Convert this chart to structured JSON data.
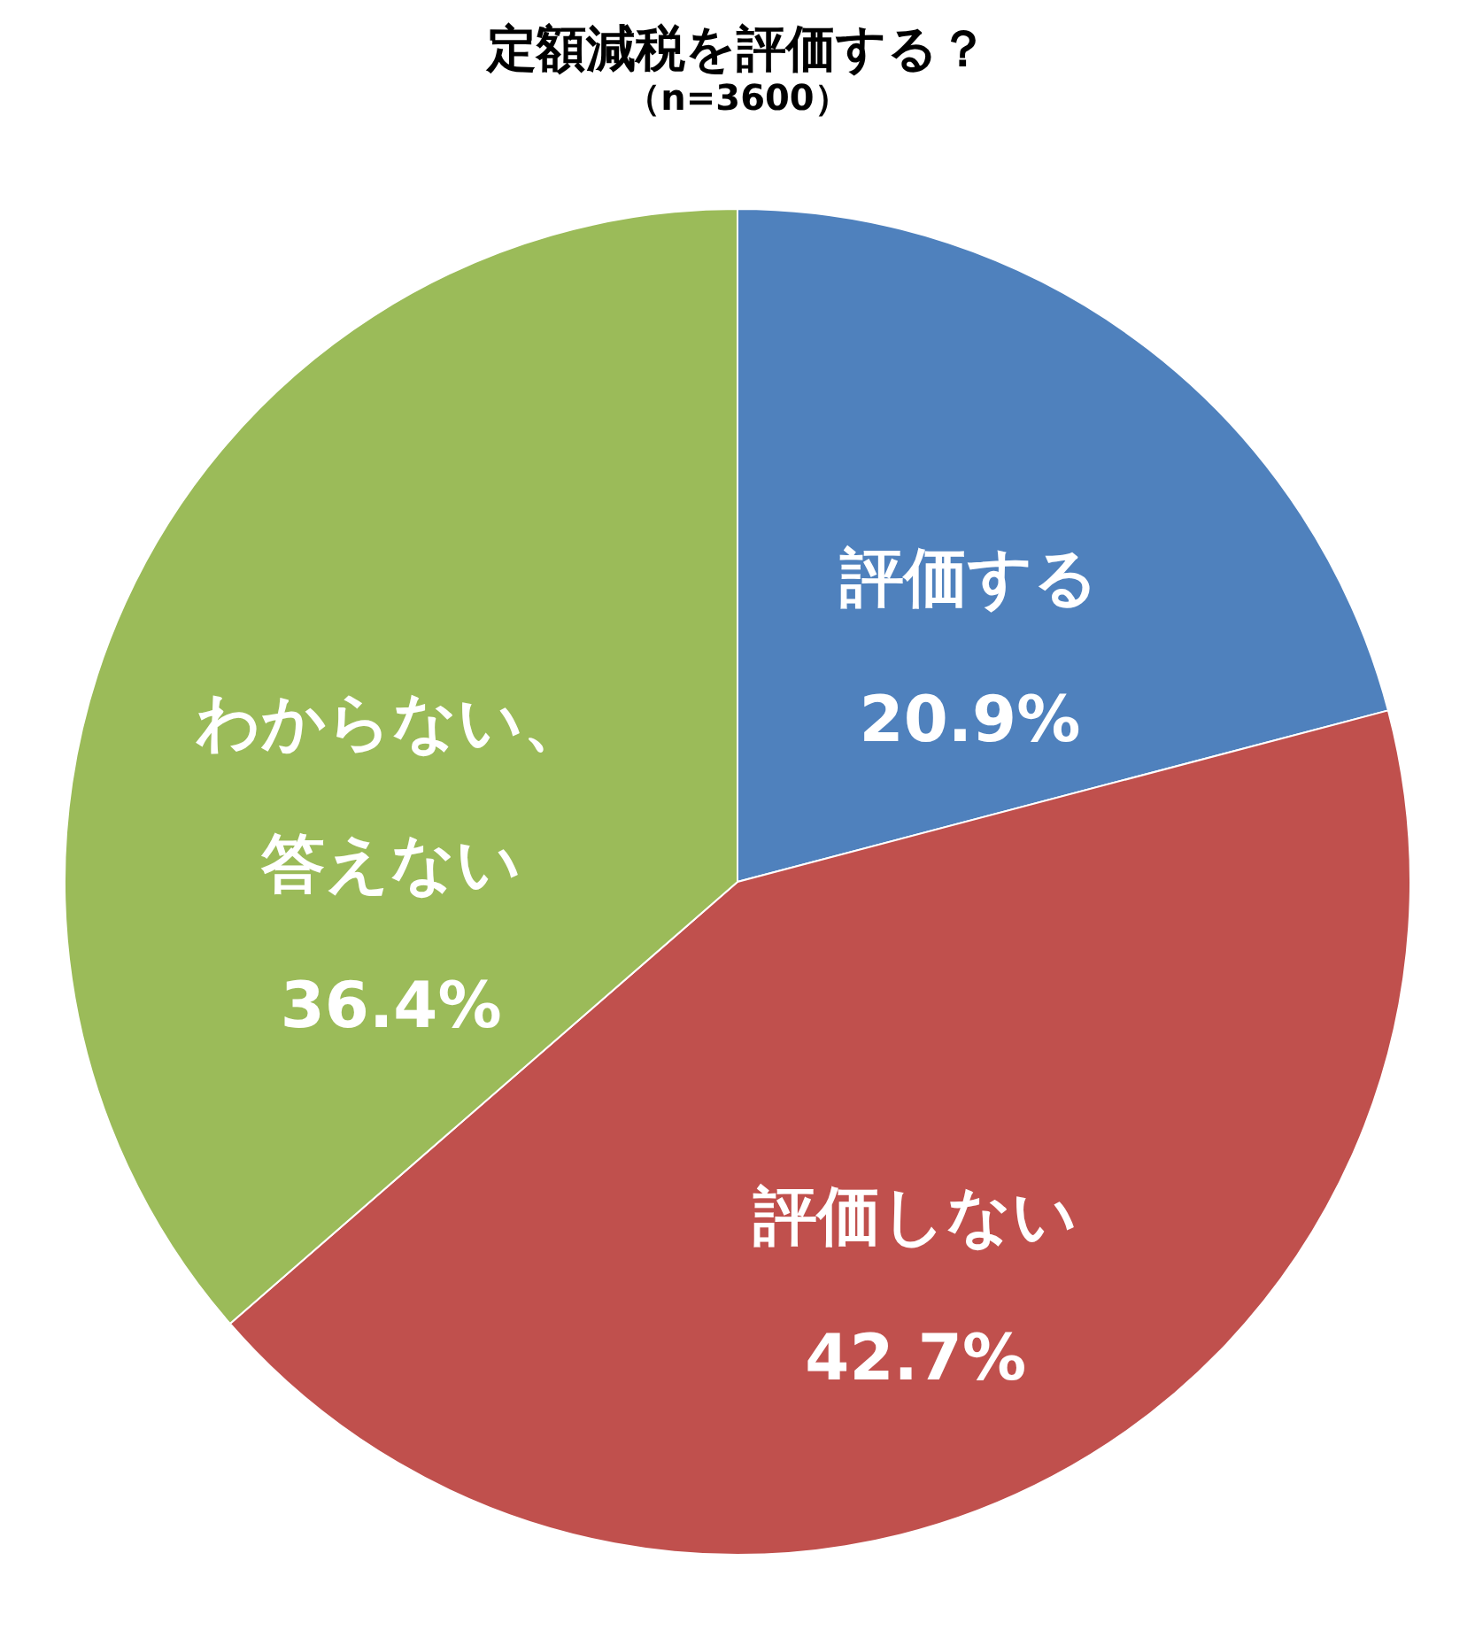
{
  "chart_data": {
    "type": "pie",
    "title": "定額減税を評価する？",
    "subtitle": "（n=3600）",
    "categories": [
      "評価する",
      "評価しない",
      "わからない、答えない"
    ],
    "values": [
      20.9,
      42.7,
      36.4
    ],
    "colors": [
      "#4f81bd",
      "#c0504d",
      "#9bbb59"
    ],
    "value_labels": [
      "20.9%",
      "42.7%",
      "36.4%"
    ],
    "legend": false
  }
}
